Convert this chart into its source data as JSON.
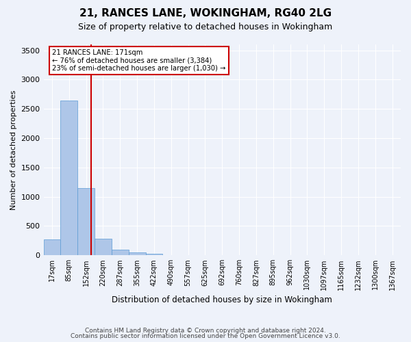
{
  "title": "21, RANCES LANE, WOKINGHAM, RG40 2LG",
  "subtitle": "Size of property relative to detached houses in Wokingham",
  "xlabel": "Distribution of detached houses by size in Wokingham",
  "ylabel": "Number of detached properties",
  "bar_labels": [
    "17sqm",
    "85sqm",
    "152sqm",
    "220sqm",
    "287sqm",
    "355sqm",
    "422sqm",
    "490sqm",
    "557sqm",
    "625sqm",
    "692sqm",
    "760sqm",
    "827sqm",
    "895sqm",
    "962sqm",
    "1030sqm",
    "1097sqm",
    "1165sqm",
    "1232sqm",
    "1300sqm",
    "1367sqm"
  ],
  "bar_values": [
    270,
    2640,
    1150,
    280,
    95,
    45,
    30,
    0,
    0,
    0,
    0,
    0,
    0,
    0,
    0,
    0,
    0,
    0,
    0,
    0,
    0
  ],
  "bar_color": "#aec6e8",
  "bar_edge_color": "#5b9bd5",
  "ylim": [
    0,
    3600
  ],
  "yticks": [
    0,
    500,
    1000,
    1500,
    2000,
    2500,
    3000,
    3500
  ],
  "property_line_label": "21 RANCES LANE: 171sqm",
  "annotation_line1": "← 76% of detached houses are smaller (3,384)",
  "annotation_line2": "23% of semi-detached houses are larger (1,030) →",
  "annotation_box_color": "#ffffff",
  "annotation_box_edge": "#cc0000",
  "vline_color": "#cc0000",
  "vline_x_index": 2.28,
  "background_color": "#eef2fa",
  "grid_color": "#ffffff",
  "footer_line1": "Contains HM Land Registry data © Crown copyright and database right 2024.",
  "footer_line2": "Contains public sector information licensed under the Open Government Licence v3.0."
}
